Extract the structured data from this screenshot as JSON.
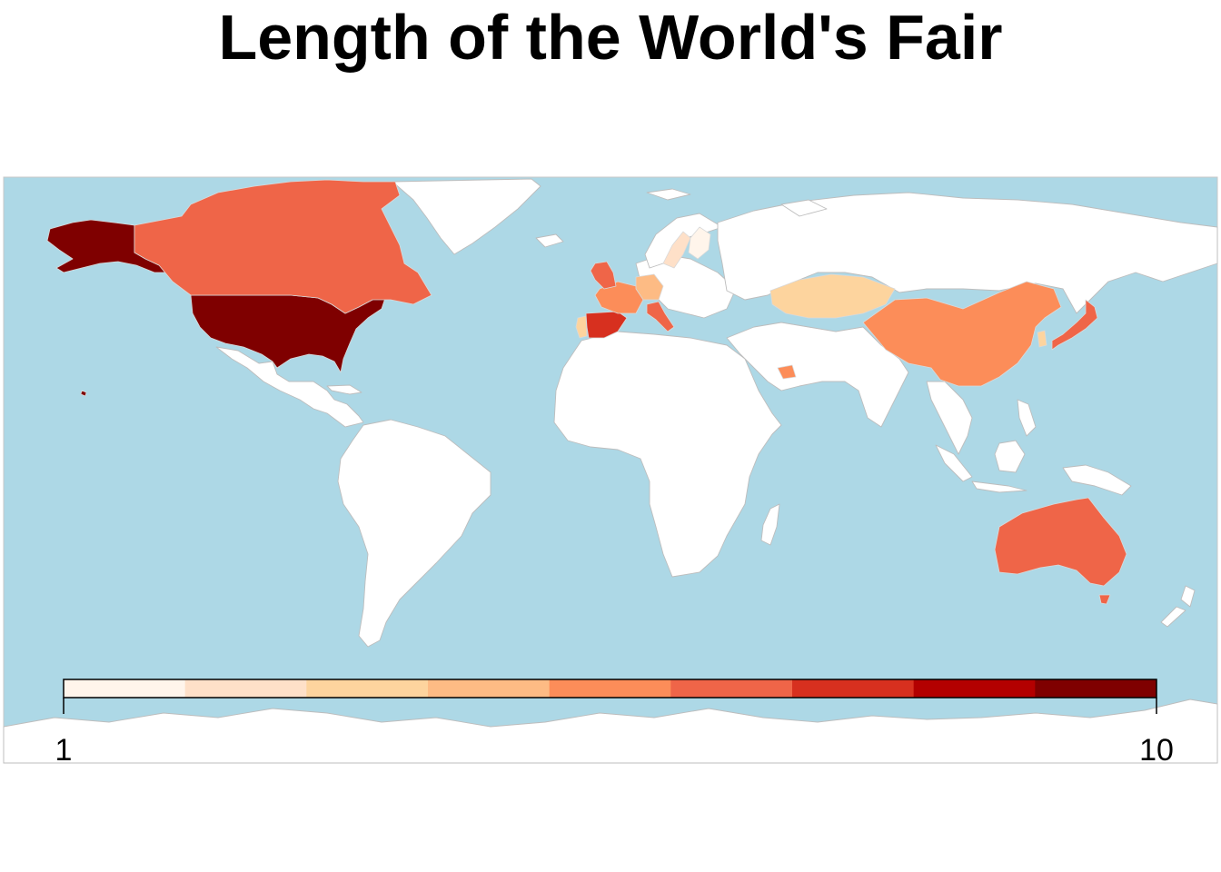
{
  "title": "Length of the World's Fair",
  "colors": {
    "ocean": "#add8e6",
    "land": "#ffffff",
    "border": "#bdbdbd"
  },
  "palette": [
    "#fff5eb",
    "#fee6ce",
    "#fdd0a2",
    "#fdae6b",
    "#fd8d3c",
    "#f16913",
    "#d94801",
    "#a63603",
    "#7f2704"
  ],
  "legend": {
    "min_label": "1",
    "max_label": "10",
    "min": 1,
    "max": 10,
    "bins": 9,
    "colors": [
      "#fff5eb",
      "#fee0c8",
      "#fdd49e",
      "#fdbb84",
      "#fc8d59",
      "#ef6548",
      "#d7301f",
      "#b30000",
      "#7f0000"
    ]
  },
  "chart_data": {
    "type": "choropleth",
    "title": "Length of the World's Fair",
    "scale": {
      "min": 1,
      "max": 10,
      "bins": 9
    },
    "regions": [
      {
        "name": "United States",
        "value": 10
      },
      {
        "name": "Canada",
        "value": 6.5
      },
      {
        "name": "Spain",
        "value": 7.5
      },
      {
        "name": "Portugal",
        "value": 3
      },
      {
        "name": "France",
        "value": 5.5
      },
      {
        "name": "United Kingdom",
        "value": 6.5
      },
      {
        "name": "Belgium",
        "value": 6.5
      },
      {
        "name": "Germany",
        "value": 4
      },
      {
        "name": "Italy",
        "value": 6
      },
      {
        "name": "Sweden",
        "value": 2
      },
      {
        "name": "Finland",
        "value": 1.5
      },
      {
        "name": "Austria",
        "value": 1.5
      },
      {
        "name": "Kazakhstan",
        "value": 3
      },
      {
        "name": "China",
        "value": 5
      },
      {
        "name": "South Korea",
        "value": 3
      },
      {
        "name": "Japan",
        "value": 6.5
      },
      {
        "name": "Australia",
        "value": 6.5
      },
      {
        "name": "United Arab Emirates",
        "value": 5.5
      }
    ]
  }
}
